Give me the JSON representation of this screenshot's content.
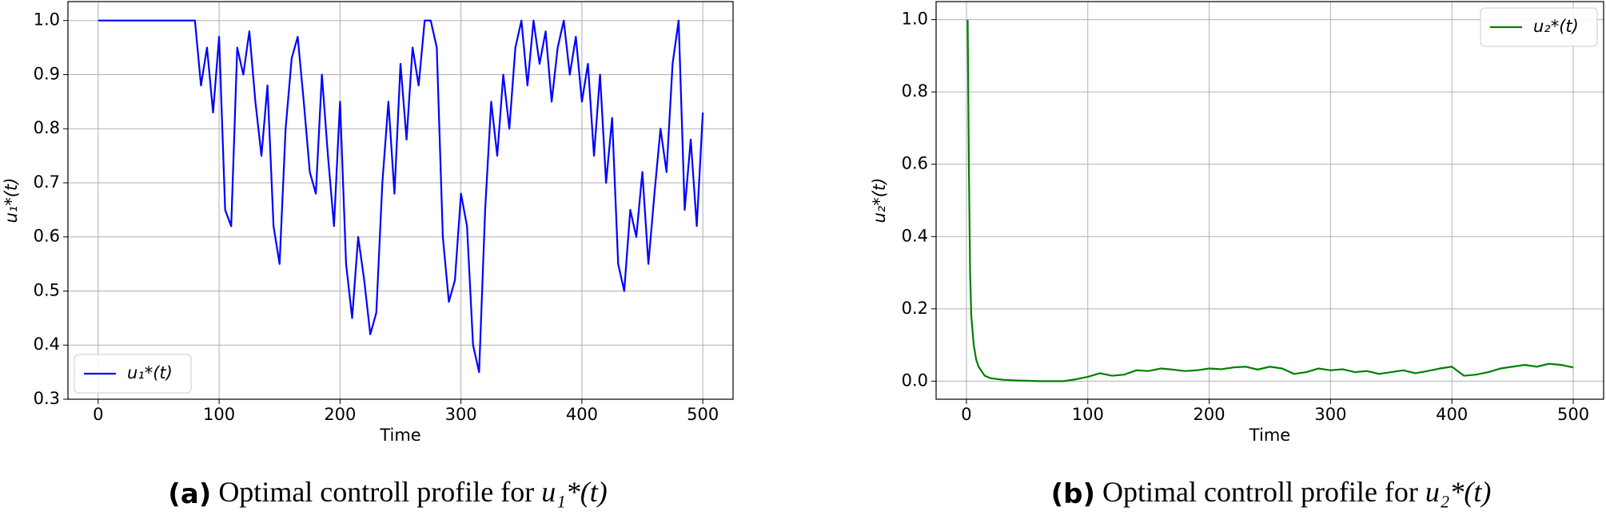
{
  "chart_data": [
    {
      "type": "line",
      "caption_label": "(a)",
      "caption": "Optimal controll profile for",
      "caption_math": "u₁*(t)",
      "xlabel": "Time",
      "ylabel": "u₁*(t)",
      "legend": "lower left",
      "grid": true,
      "xlim": [
        -25,
        525
      ],
      "ylim": [
        0.3,
        1.035
      ],
      "xticks": [
        0,
        100,
        200,
        300,
        400,
        500
      ],
      "yticks": [
        0.3,
        0.4,
        0.5,
        0.6,
        0.7,
        0.8,
        0.9,
        {
          "value": 1,
          "label": "1.0"
        }
      ],
      "x": [
        0,
        5,
        10,
        15,
        20,
        25,
        30,
        35,
        40,
        45,
        50,
        55,
        60,
        65,
        70,
        75,
        80,
        85,
        90,
        95,
        100,
        105,
        110,
        115,
        120,
        125,
        130,
        135,
        140,
        145,
        150,
        155,
        160,
        165,
        170,
        175,
        180,
        185,
        190,
        195,
        200,
        205,
        210,
        215,
        220,
        225,
        230,
        235,
        240,
        245,
        250,
        255,
        260,
        265,
        270,
        275,
        280,
        285,
        290,
        295,
        300,
        305,
        310,
        315,
        320,
        325,
        330,
        335,
        340,
        345,
        350,
        355,
        360,
        365,
        370,
        375,
        380,
        385,
        390,
        395,
        400,
        405,
        410,
        415,
        420,
        425,
        430,
        435,
        440,
        445,
        450,
        455,
        460,
        465,
        470,
        475,
        480,
        485,
        490,
        495,
        500
      ],
      "series": [
        {
          "name": "u₁*(t)",
          "color": "#0000ff",
          "values": [
            1,
            1,
            1,
            1,
            1,
            1,
            1,
            1,
            1,
            1,
            1,
            1,
            1,
            1,
            1,
            1,
            1,
            0.88,
            0.95,
            0.83,
            0.97,
            0.65,
            0.62,
            0.95,
            0.9,
            0.98,
            0.85,
            0.75,
            0.88,
            0.62,
            0.55,
            0.8,
            0.93,
            0.97,
            0.85,
            0.72,
            0.68,
            0.9,
            0.75,
            0.62,
            0.85,
            0.55,
            0.45,
            0.6,
            0.52,
            0.42,
            0.46,
            0.7,
            0.85,
            0.68,
            0.92,
            0.78,
            0.95,
            0.88,
            1,
            1,
            0.95,
            0.6,
            0.48,
            0.52,
            0.68,
            0.62,
            0.4,
            0.35,
            0.65,
            0.85,
            0.75,
            0.9,
            0.8,
            0.95,
            1,
            0.88,
            1,
            0.92,
            0.98,
            0.85,
            0.95,
            1,
            0.9,
            0.97,
            0.85,
            0.92,
            0.75,
            0.9,
            0.7,
            0.82,
            0.55,
            0.5,
            0.65,
            0.6,
            0.72,
            0.55,
            0.68,
            0.8,
            0.72,
            0.92,
            1,
            0.65,
            0.78,
            0.62,
            0.83
          ]
        }
      ]
    },
    {
      "type": "line",
      "caption_label": "(b)",
      "caption": "Optimal controll profile for",
      "caption_math": "u₂*(t)",
      "xlabel": "Time",
      "ylabel": "u₂*(t)",
      "legend": "upper right",
      "grid": true,
      "xlim": [
        -25,
        525
      ],
      "ylim": [
        -0.05,
        1.05
      ],
      "xticks": [
        0,
        100,
        200,
        300,
        400,
        500
      ],
      "yticks": [
        {
          "value": 0,
          "label": "0.0"
        },
        0.2,
        0.4,
        0.6,
        0.8,
        {
          "value": 1,
          "label": "1.0"
        }
      ],
      "x": [
        1,
        2,
        3,
        4,
        6,
        8,
        10,
        15,
        20,
        30,
        40,
        50,
        60,
        70,
        80,
        90,
        100,
        110,
        120,
        130,
        140,
        150,
        160,
        170,
        180,
        190,
        200,
        210,
        220,
        230,
        240,
        250,
        260,
        270,
        280,
        290,
        300,
        310,
        320,
        330,
        340,
        350,
        360,
        370,
        380,
        390,
        400,
        410,
        420,
        430,
        440,
        450,
        460,
        470,
        480,
        490,
        500
      ],
      "series": [
        {
          "name": "u₂*(t)",
          "color": "#008000",
          "values": [
            1,
            0.6,
            0.3,
            0.18,
            0.1,
            0.06,
            0.04,
            0.015,
            0.008,
            0.004,
            0.002,
            0.001,
            0,
            0,
            0,
            0.005,
            0.012,
            0.022,
            0.015,
            0.018,
            0.03,
            0.028,
            0.035,
            0.032,
            0.028,
            0.03,
            0.035,
            0.033,
            0.038,
            0.04,
            0.032,
            0.04,
            0.035,
            0.02,
            0.025,
            0.035,
            0.03,
            0.033,
            0.025,
            0.028,
            0.02,
            0.025,
            0.03,
            0.022,
            0.028,
            0.035,
            0.04,
            0.015,
            0.018,
            0.025,
            0.035,
            0.04,
            0.045,
            0.04,
            0.048,
            0.045,
            0.038
          ]
        }
      ]
    }
  ]
}
